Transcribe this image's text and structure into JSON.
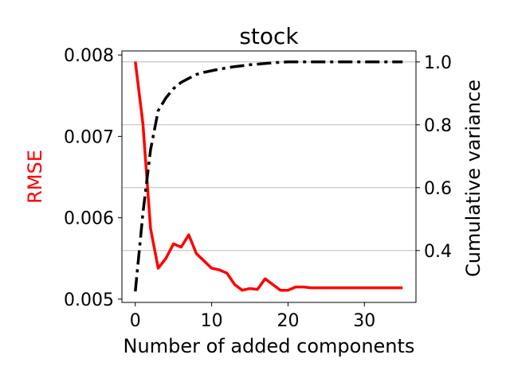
{
  "chart_data": {
    "type": "line",
    "title": "stock",
    "xlabel": "Number of added components",
    "ylabel_left": "RMSE",
    "ylabel_right": "Cumulative variance",
    "xlim": [
      -1.75,
      36.75
    ],
    "ylim_left": [
      0.00496,
      0.00805
    ],
    "ylim_right": [
      0.235,
      1.035
    ],
    "xticks": [
      0,
      10,
      20,
      30
    ],
    "yticks_left": [
      0.005,
      0.006,
      0.007,
      0.008
    ],
    "yticks_left_labels": [
      "0.005",
      "0.006",
      "0.007",
      "0.008"
    ],
    "yticks_right": [
      0.4,
      0.6,
      0.8,
      1.0
    ],
    "yticks_right_labels": [
      "0.4",
      "0.6",
      "0.8",
      "1.0"
    ],
    "grid": "horizontal, right axis ticks",
    "series": [
      {
        "axis": "left",
        "color": "#ff0000",
        "style": "solid",
        "x": [
          0,
          1,
          2,
          3,
          4,
          5,
          6,
          7,
          8,
          9,
          10,
          11,
          12,
          13,
          14,
          15,
          16,
          17,
          18,
          19,
          20,
          21,
          22,
          23,
          24,
          25,
          26,
          27,
          28,
          29,
          30,
          31,
          32,
          33,
          34,
          35
        ],
        "values": [
          0.00792,
          0.00715,
          0.00587,
          0.00538,
          0.0055,
          0.00568,
          0.00564,
          0.00579,
          0.00556,
          0.00547,
          0.00538,
          0.00536,
          0.00532,
          0.00518,
          0.00511,
          0.00513,
          0.00512,
          0.00525,
          0.00518,
          0.00511,
          0.00511,
          0.00515,
          0.00515,
          0.00514,
          0.00514,
          0.00514,
          0.00514,
          0.00514,
          0.00514,
          0.00514,
          0.00514,
          0.00514,
          0.00514,
          0.00514,
          0.00514,
          0.00514
        ]
      },
      {
        "axis": "right",
        "color": "#000000",
        "style": "dashdot",
        "x": [
          0,
          1,
          2,
          3,
          4,
          5,
          6,
          7,
          8,
          9,
          10,
          11,
          12,
          13,
          14,
          15,
          16,
          17,
          18,
          19,
          20,
          21,
          22,
          23,
          24,
          25,
          26,
          27,
          28,
          29,
          30,
          31,
          32,
          33,
          34,
          35
        ],
        "values": [
          0.27,
          0.52,
          0.72,
          0.845,
          0.885,
          0.915,
          0.935,
          0.948,
          0.96,
          0.967,
          0.972,
          0.977,
          0.981,
          0.985,
          0.988,
          0.991,
          0.993,
          0.995,
          0.997,
          0.999,
          1.0,
          1.0,
          1.0,
          1.0,
          1.0,
          1.0,
          1.0,
          1.0,
          1.0,
          1.0,
          1.0,
          1.0,
          1.0,
          1.0,
          1.0,
          1.0
        ]
      }
    ]
  }
}
